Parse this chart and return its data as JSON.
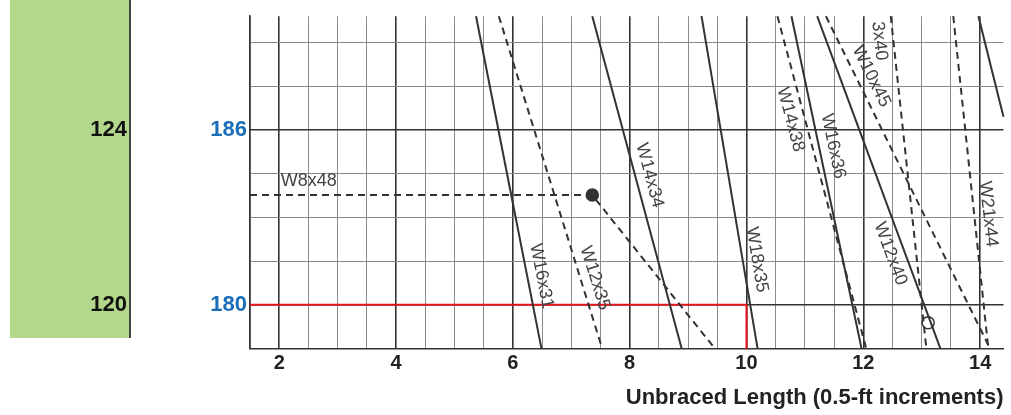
{
  "chart_data": {
    "type": "line",
    "xlabel": "Unbraced Length (0.5-ft increments)",
    "xlim": [
      1.5,
      14.4
    ],
    "xticks": [
      {
        "value": 1.5,
        "label": null
      },
      2,
      {
        "value": 2.5,
        "label": null
      },
      {
        "value": 3,
        "label": null
      },
      {
        "value": 3.5,
        "label": null
      },
      4,
      {
        "value": 4.5,
        "label": null
      },
      {
        "value": 5,
        "label": null
      },
      {
        "value": 5.5,
        "label": null
      },
      6,
      {
        "value": 6.5,
        "label": null
      },
      {
        "value": 7,
        "label": null
      },
      {
        "value": 7.5,
        "label": null
      },
      8,
      {
        "value": 8.5,
        "label": null
      },
      {
        "value": 9,
        "label": null
      },
      {
        "value": 9.5,
        "label": null
      },
      10,
      {
        "value": 10.5,
        "label": null
      },
      {
        "value": 11,
        "label": null
      },
      {
        "value": 11.5,
        "label": null
      },
      12,
      {
        "value": 12.5,
        "label": null
      },
      {
        "value": 13,
        "label": null
      },
      {
        "value": 13.5,
        "label": null
      },
      14
    ],
    "ylim": [
      119,
      126.6
    ],
    "yticks": [
      {
        "value": 119,
        "label": null
      },
      120,
      {
        "value": 121,
        "label": null
      },
      {
        "value": 122,
        "label": null
      },
      {
        "value": 123,
        "label": null
      },
      124,
      {
        "value": 125,
        "label": null
      },
      {
        "value": 126,
        "label": null
      }
    ],
    "y2lim": [
      178.5,
      189.9
    ],
    "y2ticks": [
      180,
      186
    ],
    "grid": true,
    "legend": false,
    "series": [
      {
        "name": "W8x48",
        "color": "#333333",
        "line_style": "dashed",
        "x": [
          1.5,
          7.36,
          9.46
        ],
        "values": [
          122.51,
          122.51,
          119
        ]
      },
      {
        "name": "W16x31",
        "color": "#333333",
        "line_style": "solid",
        "x": [
          5.37,
          6.49
        ],
        "values": [
          126.6,
          119
        ]
      },
      {
        "name": "W12x35",
        "color": "#333333",
        "line_style": "dashed",
        "x": [
          5.76,
          7.53
        ],
        "values": [
          126.6,
          119
        ]
      },
      {
        "name": "W14x34",
        "color": "#333333",
        "line_style": "solid",
        "x": [
          7.36,
          8.89
        ],
        "values": [
          126.6,
          119
        ]
      },
      {
        "name": "W18x35",
        "color": "#333333",
        "line_style": "solid",
        "x": [
          9.23,
          10.19
        ],
        "values": [
          126.6,
          119
        ]
      },
      {
        "name": "W14x38",
        "color": "#333333",
        "line_style": "dashed",
        "x": [
          10.53,
          12.05
        ],
        "values": [
          126.6,
          119
        ]
      },
      {
        "name": "W16x36",
        "color": "#333333",
        "line_style": "solid",
        "x": [
          10.77,
          11.97
        ],
        "values": [
          126.6,
          119
        ]
      },
      {
        "name": "W10x45",
        "color": "#333333",
        "line_style": "dashed",
        "x": [
          11.36,
          14.17
        ],
        "values": [
          126.6,
          119
        ]
      },
      {
        "name": "W12x40",
        "color": "#333333",
        "line_style": "solid",
        "x": [
          11.21,
          13.32
        ],
        "values": [
          126.6,
          119
        ]
      },
      {
        "name": "3x40",
        "color": "#333333",
        "line_style": "dashed",
        "x": [
          12.47,
          13.08
        ],
        "values": [
          126.6,
          119
        ]
      },
      {
        "name": "W21x44",
        "color": "#333333",
        "line_style": "dashed",
        "x": [
          13.54,
          14.14
        ],
        "values": [
          126.6,
          119
        ]
      },
      {
        "color": "#333333",
        "line_style": "solid",
        "x": [
          13.97,
          14.4
        ],
        "values": [
          126.6,
          124.3
        ]
      },
      {
        "color": "#e8141b",
        "line_style": "solid",
        "x": [
          1.5,
          10,
          10
        ],
        "values": [
          120,
          120,
          119
        ]
      },
      {
        "type": "scatter",
        "color": "#333333",
        "marker": "circle",
        "x": [
          7.36
        ],
        "values": [
          122.51
        ]
      },
      {
        "type": "scatter",
        "color": "#ffffff",
        "marker": "circle",
        "x": [
          13.11
        ],
        "values": [
          119.59
        ]
      }
    ]
  }
}
